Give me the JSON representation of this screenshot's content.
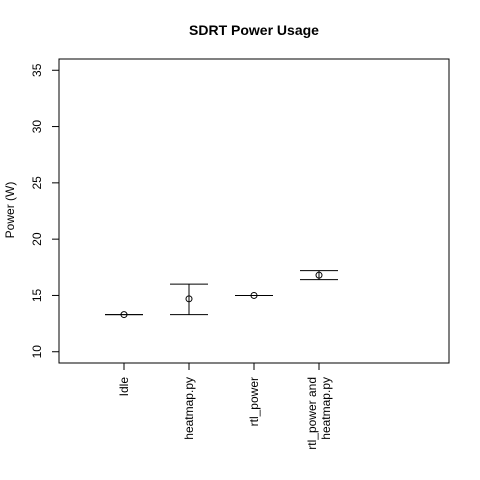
{
  "chart_data": {
    "type": "errorbar",
    "title": "SDRT Power Usage",
    "xlabel": "",
    "ylabel": "Power (W)",
    "ylim": [
      9,
      36
    ],
    "xlim": [
      0,
      6
    ],
    "yticks": [
      10,
      15,
      20,
      25,
      30,
      35
    ],
    "categories": [
      {
        "lines": [
          "Idle"
        ]
      },
      {
        "lines": [
          "heatmap.py"
        ]
      },
      {
        "lines": [
          "rtl_power"
        ]
      },
      {
        "lines": [
          "rtl_power and",
          "heatmap.py"
        ]
      }
    ],
    "points": [
      {
        "x": 1,
        "mean": 13.3,
        "low": 13.3,
        "high": 13.3
      },
      {
        "x": 2,
        "mean": 14.7,
        "low": 13.3,
        "high": 16.0
      },
      {
        "x": 3,
        "mean": 15.0,
        "low": 15.0,
        "high": 15.0
      },
      {
        "x": 4,
        "mean": 16.8,
        "low": 16.4,
        "high": 17.2
      }
    ],
    "grid": false,
    "legend": "none"
  }
}
